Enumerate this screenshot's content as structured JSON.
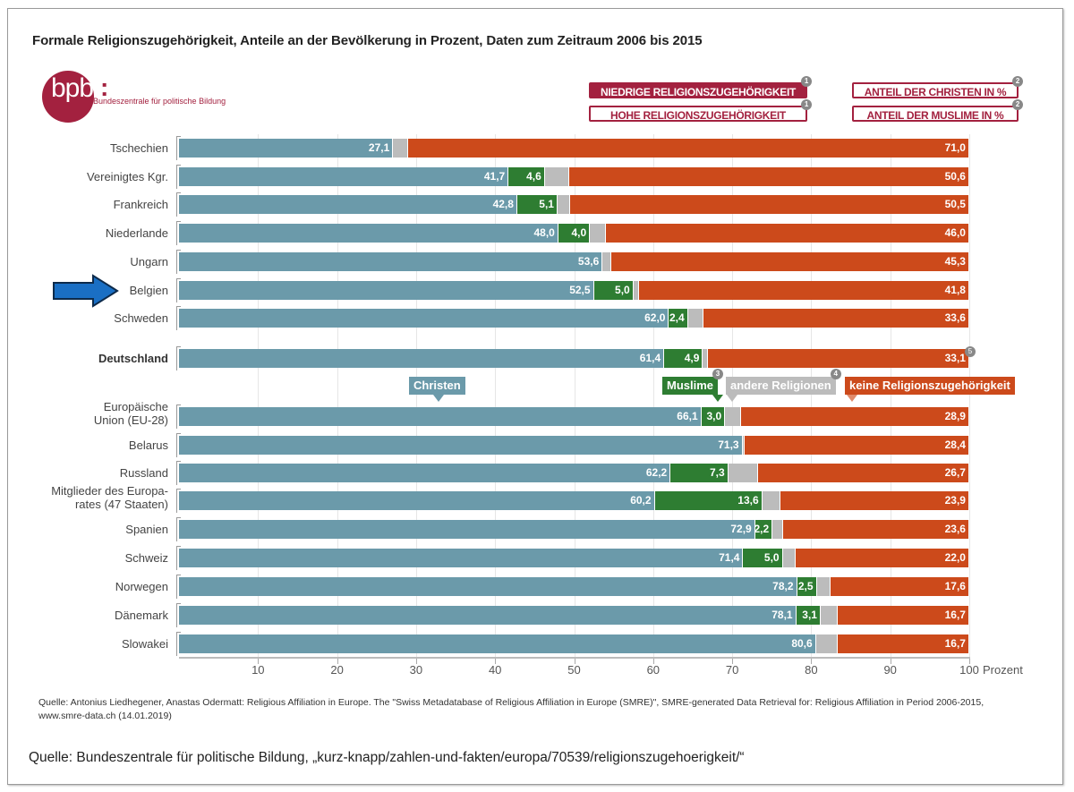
{
  "title": "Formale Religionszugehörigkeit, Anteile an der Bevölkerung in Prozent, Daten zum Zeitraum 2006 bis 2015",
  "logo": {
    "mark": "bpb",
    "colon": ":",
    "subtitle": "Bundeszentrale für politische Bildung"
  },
  "legend_boxes": [
    {
      "label": "NIEDRIGE RELIGIONSZUGEHÖRIGKEIT",
      "badge": "1",
      "style": "filled"
    },
    {
      "label": "HOHE RELIGIONSZUGEHÖRIGKEIT",
      "badge": "1",
      "style": "outline"
    },
    {
      "label": "ANTEIL DER CHRISTEN IN %",
      "badge": "2",
      "style": "outline"
    },
    {
      "label": "ANTEIL DER MUSLIME IN %",
      "badge": "2",
      "style": "outline"
    }
  ],
  "colors": {
    "christen": "#6b9aaa",
    "muslime": "#2e7d32",
    "andere": "#bcbcbc",
    "keine": "#cc4a1b",
    "brand": "#a3213f",
    "arrow": "#1a6fc4"
  },
  "highlighted_row": "Belgien",
  "chart_data": {
    "type": "bar",
    "orientation": "horizontal-stacked",
    "title": "Formale Religionszugehörigkeit, Anteile an der Bevölkerung in Prozent, Daten zum Zeitraum 2006 bis 2015",
    "xlabel": "Prozent",
    "xlim": [
      0,
      100
    ],
    "xticks": [
      10,
      20,
      30,
      40,
      50,
      60,
      70,
      80,
      90,
      100
    ],
    "grid": true,
    "series_names": [
      "Christen",
      "Muslime",
      "andere Religionen",
      "keine Religionszugehörigkeit"
    ],
    "series_badges": {
      "Muslime": "3",
      "andere Religionen": "4"
    },
    "groups": [
      {
        "rows": [
          {
            "label": "Tschechien",
            "christen": 27.1,
            "muslime": null,
            "keine": 71.0
          },
          {
            "label": "Vereinigtes Kgr.",
            "christen": 41.7,
            "muslime": 4.6,
            "keine": 50.6
          },
          {
            "label": "Frankreich",
            "christen": 42.8,
            "muslime": 5.1,
            "keine": 50.5
          },
          {
            "label": "Niederlande",
            "christen": 48.0,
            "muslime": 4.0,
            "keine": 46.0
          },
          {
            "label": "Ungarn",
            "christen": 53.6,
            "muslime": null,
            "keine": 45.3
          },
          {
            "label": "Belgien",
            "christen": 52.5,
            "muslime": 5.0,
            "keine": 41.8
          },
          {
            "label": "Schweden",
            "christen": 62.0,
            "muslime": 2.4,
            "keine": 33.6
          }
        ]
      },
      {
        "rows": [
          {
            "label": "Deutschland",
            "christen": 61.4,
            "muslime": 4.9,
            "keine": 33.1,
            "bold": true,
            "badge": "5"
          }
        ]
      },
      {
        "rows": [
          {
            "label": "Europäische Union (EU-28)",
            "christen": 66.1,
            "muslime": 3.0,
            "keine": 28.9
          },
          {
            "label": "Belarus",
            "christen": 71.3,
            "muslime": null,
            "keine": 28.4
          },
          {
            "label": "Russland",
            "christen": 62.2,
            "muslime": 7.3,
            "keine": 26.7
          },
          {
            "label": "Mitglieder des Europarates (47 Staaten)",
            "christen": 60.2,
            "muslime": 13.6,
            "keine": 23.9
          },
          {
            "label": "Spanien",
            "christen": 72.9,
            "muslime": 2.2,
            "keine": 23.6
          },
          {
            "label": "Schweiz",
            "christen": 71.4,
            "muslime": 5.0,
            "keine": 22.0
          },
          {
            "label": "Norwegen",
            "christen": 78.2,
            "muslime": 2.5,
            "keine": 17.6
          },
          {
            "label": "Dänemark",
            "christen": 78.1,
            "muslime": 3.1,
            "keine": 16.7
          },
          {
            "label": "Slowakei",
            "christen": 80.6,
            "muslime": null,
            "keine": 16.7
          }
        ]
      }
    ]
  },
  "row_labels_display": {
    "Europäische Union (EU-28)": [
      "Europäische",
      "Union (EU-28)"
    ],
    "Mitglieder des Europarates (47 Staaten)": [
      "Mitglieder des Europa-",
      "rates (47 Staaten)"
    ]
  },
  "series_tags": {
    "christen": "Christen",
    "muslime": "Muslime",
    "andere": "andere Religionen",
    "keine": "keine Religionszugehörigkeit",
    "badge_muslime": "3",
    "badge_andere": "4"
  },
  "axis": {
    "unit": "Prozent"
  },
  "sources": {
    "line1": "Quelle: Antonius Liedhegener, Anastas Odermatt: Religious Affiliation in Europe. The \"Swiss Metadatabase of Religious Affiliation in Europe (SMRE)\", SMRE-generated Data Retrieval for: Religious Affiliation in Period 2006-2015, www.smre-data.ch (14.01.2019)",
    "line2": "Quelle: Bundeszentrale für politische Bildung, „kurz-knapp/zahlen-und-fakten/europa/70539/religionszugehoerigkeit/“"
  }
}
